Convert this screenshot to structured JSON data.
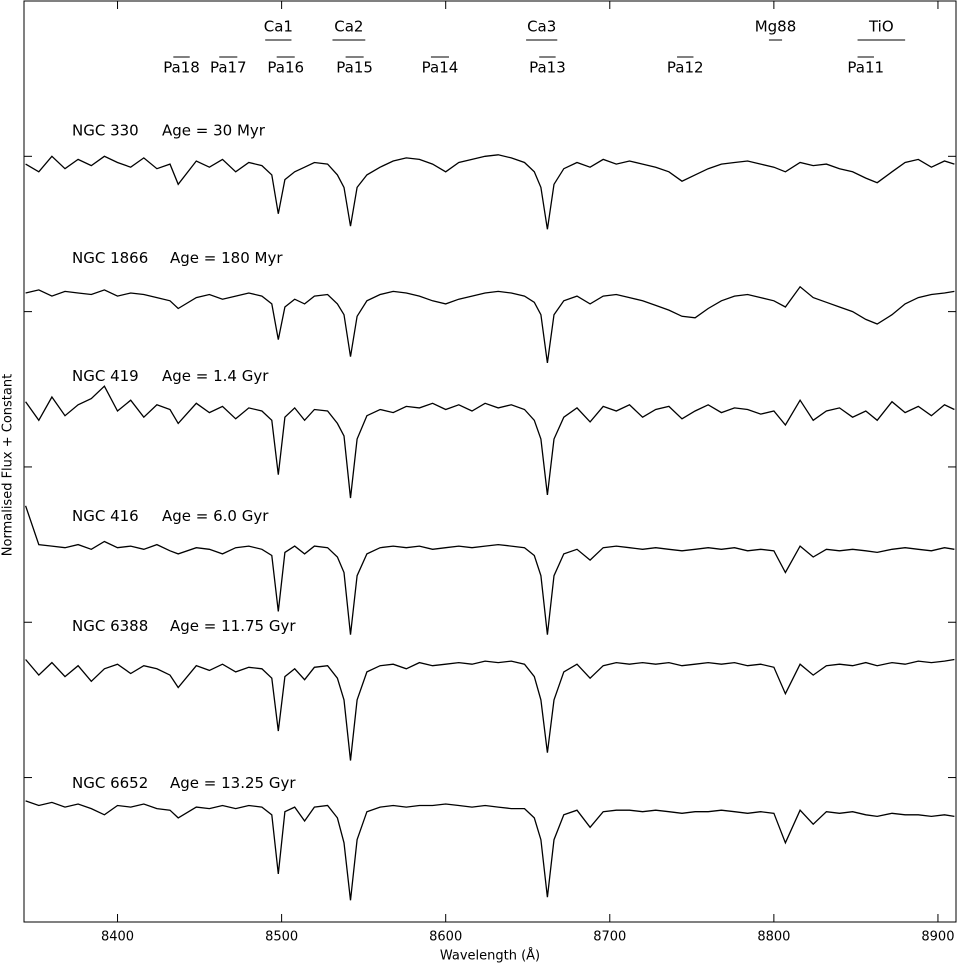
{
  "chart_data": {
    "type": "line",
    "x_label": "Wavelength (Å)",
    "y_label": "Normalised Flux + Constant",
    "xlim": [
      8343,
      8911
    ],
    "ylim": [
      0.07,
      6.0
    ],
    "xticks": [
      8400,
      8500,
      8600,
      8700,
      8800,
      8900
    ],
    "yticks": [
      1,
      2,
      3,
      4,
      5
    ],
    "x": [
      8344,
      8352,
      8360,
      8368,
      8376,
      8384,
      8392,
      8400,
      8408,
      8416,
      8424,
      8432,
      8437,
      8448,
      8456,
      8464,
      8472,
      8480,
      8488,
      8494,
      8498,
      8502,
      8508,
      8514,
      8520,
      8528,
      8534,
      8538,
      8542,
      8546,
      8552,
      8560,
      8568,
      8576,
      8584,
      8592,
      8600,
      8608,
      8616,
      8624,
      8632,
      8640,
      8648,
      8654,
      8658,
      8662,
      8666,
      8672,
      8680,
      8688,
      8696,
      8704,
      8712,
      8720,
      8728,
      8736,
      8744,
      8752,
      8760,
      8768,
      8776,
      8784,
      8792,
      8800,
      8807,
      8816,
      8824,
      8832,
      8840,
      8848,
      8856,
      8863,
      8872,
      8880,
      8888,
      8896,
      8904,
      8910
    ],
    "series": [
      {
        "name": "NGC 330",
        "age": "Age = 30 Myr",
        "color": "#000000",
        "values": [
          4.95,
          4.9,
          5.0,
          4.92,
          4.98,
          4.94,
          5.0,
          4.96,
          4.93,
          4.99,
          4.92,
          4.95,
          4.82,
          4.97,
          4.93,
          4.98,
          4.9,
          4.96,
          4.94,
          4.88,
          4.63,
          4.85,
          4.9,
          4.93,
          4.96,
          4.95,
          4.88,
          4.8,
          4.55,
          4.8,
          4.88,
          4.93,
          4.97,
          4.99,
          4.98,
          4.95,
          4.9,
          4.96,
          4.98,
          5.0,
          5.01,
          4.99,
          4.96,
          4.9,
          4.8,
          4.53,
          4.82,
          4.92,
          4.96,
          4.93,
          4.98,
          4.95,
          4.97,
          4.95,
          4.93,
          4.9,
          4.84,
          4.88,
          4.92,
          4.95,
          4.96,
          4.97,
          4.95,
          4.93,
          4.9,
          4.96,
          4.94,
          4.95,
          4.92,
          4.9,
          4.86,
          4.83,
          4.9,
          4.96,
          4.98,
          4.93,
          4.97,
          4.95
        ]
      },
      {
        "name": "NGC 1866",
        "age": "Age = 180 Myr",
        "color": "#000000",
        "values": [
          4.12,
          4.14,
          4.1,
          4.13,
          4.12,
          4.11,
          4.14,
          4.1,
          4.12,
          4.11,
          4.09,
          4.07,
          4.02,
          4.09,
          4.11,
          4.08,
          4.1,
          4.12,
          4.1,
          4.05,
          3.82,
          4.03,
          4.08,
          4.05,
          4.1,
          4.11,
          4.05,
          3.98,
          3.71,
          3.97,
          4.07,
          4.11,
          4.13,
          4.12,
          4.1,
          4.07,
          4.05,
          4.08,
          4.1,
          4.12,
          4.13,
          4.12,
          4.1,
          4.06,
          3.98,
          3.67,
          3.98,
          4.07,
          4.1,
          4.05,
          4.1,
          4.11,
          4.09,
          4.07,
          4.04,
          4.01,
          3.97,
          3.96,
          4.02,
          4.07,
          4.1,
          4.11,
          4.09,
          4.07,
          4.03,
          4.16,
          4.09,
          4.06,
          4.03,
          4.0,
          3.95,
          3.92,
          3.98,
          4.05,
          4.09,
          4.11,
          4.12,
          4.13
        ]
      },
      {
        "name": "NGC 419",
        "age": "Age = 1.4 Gyr",
        "color": "#000000",
        "values": [
          3.42,
          3.3,
          3.45,
          3.33,
          3.4,
          3.44,
          3.52,
          3.36,
          3.43,
          3.32,
          3.4,
          3.37,
          3.28,
          3.41,
          3.35,
          3.39,
          3.31,
          3.38,
          3.36,
          3.3,
          2.95,
          3.32,
          3.38,
          3.3,
          3.37,
          3.36,
          3.28,
          3.2,
          2.8,
          3.18,
          3.33,
          3.37,
          3.35,
          3.39,
          3.38,
          3.41,
          3.37,
          3.4,
          3.36,
          3.41,
          3.38,
          3.4,
          3.37,
          3.3,
          3.18,
          2.82,
          3.18,
          3.32,
          3.38,
          3.29,
          3.39,
          3.36,
          3.4,
          3.32,
          3.37,
          3.39,
          3.31,
          3.36,
          3.4,
          3.35,
          3.38,
          3.37,
          3.34,
          3.36,
          3.27,
          3.43,
          3.3,
          3.36,
          3.38,
          3.32,
          3.36,
          3.3,
          3.42,
          3.35,
          3.39,
          3.33,
          3.4,
          3.37
        ]
      },
      {
        "name": "NGC 416",
        "age": "Age = 6.0 Gyr",
        "color": "#000000",
        "values": [
          2.75,
          2.5,
          2.49,
          2.48,
          2.5,
          2.47,
          2.52,
          2.48,
          2.49,
          2.47,
          2.5,
          2.46,
          2.44,
          2.48,
          2.47,
          2.44,
          2.48,
          2.49,
          2.47,
          2.43,
          2.07,
          2.45,
          2.49,
          2.44,
          2.49,
          2.48,
          2.42,
          2.32,
          1.92,
          2.3,
          2.44,
          2.48,
          2.49,
          2.48,
          2.49,
          2.47,
          2.48,
          2.49,
          2.48,
          2.49,
          2.5,
          2.49,
          2.48,
          2.43,
          2.3,
          1.92,
          2.3,
          2.44,
          2.47,
          2.4,
          2.48,
          2.49,
          2.48,
          2.47,
          2.48,
          2.47,
          2.46,
          2.47,
          2.48,
          2.47,
          2.48,
          2.46,
          2.47,
          2.46,
          2.32,
          2.49,
          2.42,
          2.47,
          2.46,
          2.47,
          2.46,
          2.45,
          2.47,
          2.48,
          2.47,
          2.46,
          2.48,
          2.47
        ]
      },
      {
        "name": "NGC 6388",
        "age": "Age = 11.75 Gyr",
        "color": "#000000",
        "values": [
          1.76,
          1.66,
          1.74,
          1.65,
          1.72,
          1.62,
          1.7,
          1.73,
          1.67,
          1.72,
          1.7,
          1.66,
          1.58,
          1.72,
          1.69,
          1.73,
          1.68,
          1.71,
          1.7,
          1.64,
          1.3,
          1.65,
          1.7,
          1.63,
          1.71,
          1.72,
          1.64,
          1.5,
          1.11,
          1.5,
          1.68,
          1.72,
          1.73,
          1.7,
          1.74,
          1.72,
          1.73,
          1.74,
          1.73,
          1.75,
          1.74,
          1.75,
          1.73,
          1.65,
          1.5,
          1.16,
          1.5,
          1.68,
          1.73,
          1.64,
          1.72,
          1.74,
          1.73,
          1.74,
          1.73,
          1.74,
          1.72,
          1.73,
          1.74,
          1.73,
          1.74,
          1.72,
          1.73,
          1.71,
          1.54,
          1.73,
          1.66,
          1.72,
          1.73,
          1.72,
          1.74,
          1.72,
          1.74,
          1.73,
          1.75,
          1.74,
          1.75,
          1.76
        ]
      },
      {
        "name": "NGC 6652",
        "age": "Age = 13.25 Gyr",
        "color": "#000000",
        "values": [
          0.85,
          0.82,
          0.84,
          0.81,
          0.83,
          0.8,
          0.76,
          0.82,
          0.81,
          0.83,
          0.8,
          0.79,
          0.74,
          0.81,
          0.8,
          0.82,
          0.8,
          0.82,
          0.81,
          0.76,
          0.38,
          0.78,
          0.81,
          0.72,
          0.81,
          0.82,
          0.74,
          0.58,
          0.21,
          0.6,
          0.78,
          0.81,
          0.82,
          0.81,
          0.82,
          0.82,
          0.83,
          0.82,
          0.81,
          0.82,
          0.81,
          0.8,
          0.8,
          0.74,
          0.6,
          0.23,
          0.6,
          0.76,
          0.79,
          0.68,
          0.78,
          0.79,
          0.79,
          0.78,
          0.79,
          0.78,
          0.77,
          0.78,
          0.78,
          0.79,
          0.78,
          0.77,
          0.78,
          0.77,
          0.58,
          0.79,
          0.7,
          0.78,
          0.77,
          0.78,
          0.76,
          0.75,
          0.77,
          0.76,
          0.76,
          0.75,
          0.76,
          0.75
        ]
      }
    ],
    "bands": [
      {
        "label": "Ca1",
        "row": "top",
        "range": [
          8490,
          8506
        ]
      },
      {
        "label": "Ca2",
        "row": "top",
        "range": [
          8531,
          8551
        ]
      },
      {
        "label": "Ca3",
        "row": "top",
        "range": [
          8649,
          8668
        ]
      },
      {
        "label": "Mg88",
        "row": "top",
        "range": [
          8797,
          8805
        ]
      },
      {
        "label": "TiO",
        "row": "top",
        "range": [
          8851,
          8880
        ]
      },
      {
        "label": "Pa18",
        "row": "bottom",
        "range": [
          8434,
          8444
        ]
      },
      {
        "label": "Pa17",
        "row": "bottom",
        "range": [
          8462,
          8473
        ]
      },
      {
        "label": "Pa16",
        "row": "bottom",
        "range": [
          8497,
          8508
        ]
      },
      {
        "label": "Pa15",
        "row": "bottom",
        "range": [
          8539,
          8550
        ]
      },
      {
        "label": "Pa14",
        "row": "bottom",
        "range": [
          8591,
          8602
        ]
      },
      {
        "label": "Pa13",
        "row": "bottom",
        "range": [
          8657,
          8667
        ]
      },
      {
        "label": "Pa12",
        "row": "bottom",
        "range": [
          8741,
          8751
        ]
      },
      {
        "label": "Pa11",
        "row": "bottom",
        "range": [
          8851,
          8861
        ]
      }
    ]
  }
}
